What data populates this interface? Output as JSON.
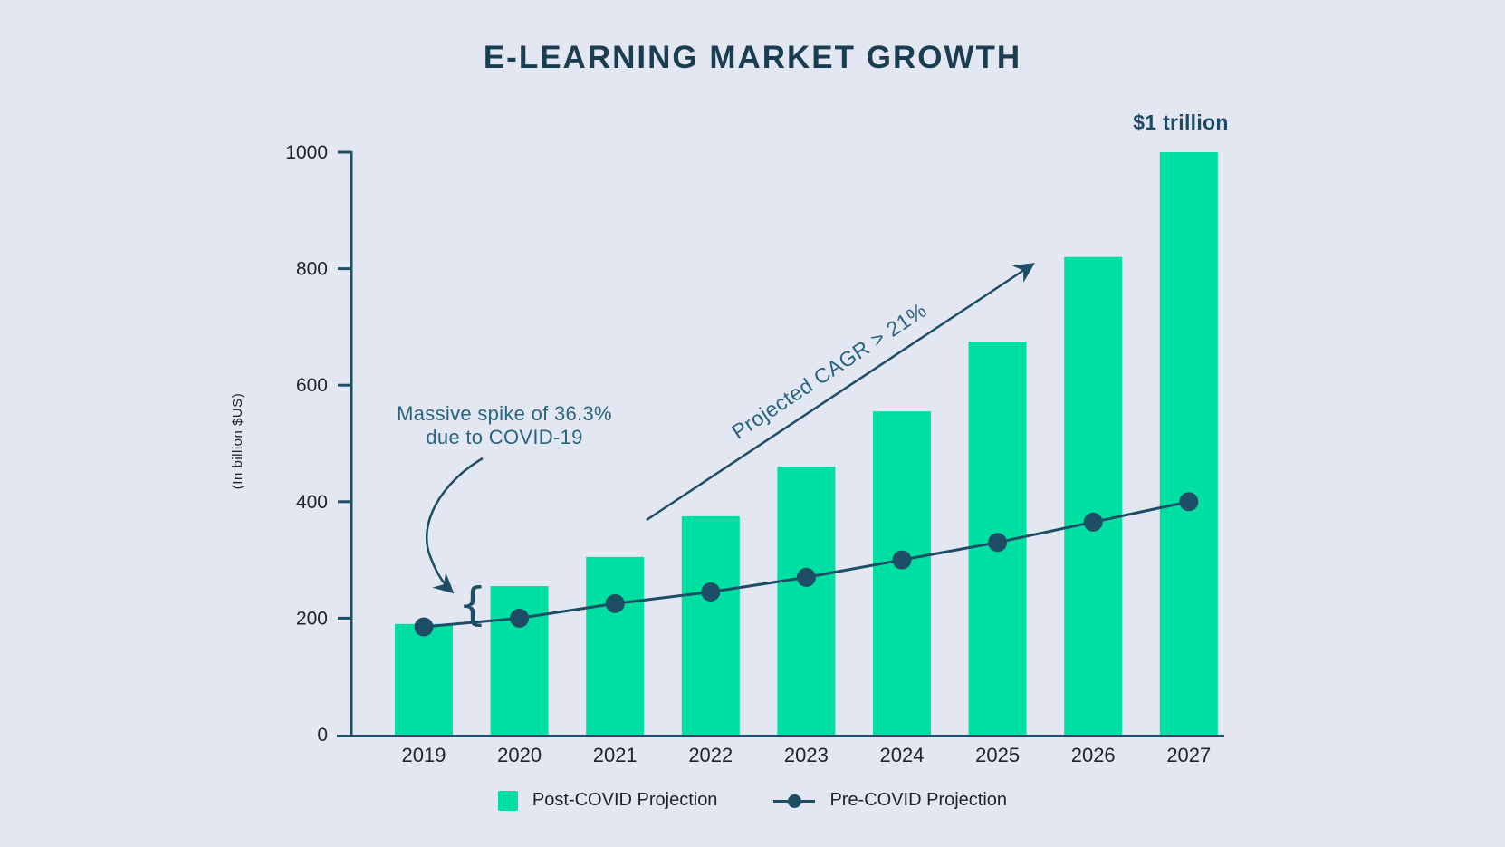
{
  "page": {
    "title": "E-LEARNING MARKET GROWTH"
  },
  "chart_data": {
    "type": "bar",
    "subtype": "bar-with-line-overlay",
    "title": "E-LEARNING MARKET GROWTH",
    "ylabel": "(In billion $US)",
    "xlabel": "",
    "categories": [
      "2019",
      "2020",
      "2021",
      "2022",
      "2023",
      "2024",
      "2025",
      "2026",
      "2027"
    ],
    "yticks": [
      0,
      200,
      400,
      600,
      800,
      1000
    ],
    "ylim": [
      0,
      1000
    ],
    "grid": false,
    "legend_position": "bottom",
    "series": [
      {
        "name": "Post-COVID Projection",
        "type": "bar",
        "color": "#00dfa2",
        "values": [
          190,
          255,
          305,
          375,
          460,
          555,
          675,
          820,
          1000
        ]
      },
      {
        "name": "Pre-COVID Projection",
        "type": "line",
        "color": "#1d4e66",
        "values": [
          185,
          200,
          225,
          245,
          270,
          300,
          330,
          365,
          400
        ]
      }
    ],
    "annotations": {
      "spike_line1": "Massive spike of 36.3%",
      "spike_line2": "due to COVID-19",
      "spike_brace": "{",
      "cagr": "Projected CAGR > 21%",
      "trillion": "$1 trillion"
    },
    "colors": {
      "background": "#e2e7f1",
      "bar": "#00dfa2",
      "line": "#1d4e66",
      "axis": "#1d4e66",
      "title": "#1b3d52",
      "annotation": "#2a6480",
      "trillion": "#1d4a67",
      "tick_text": "#1e242e"
    }
  }
}
